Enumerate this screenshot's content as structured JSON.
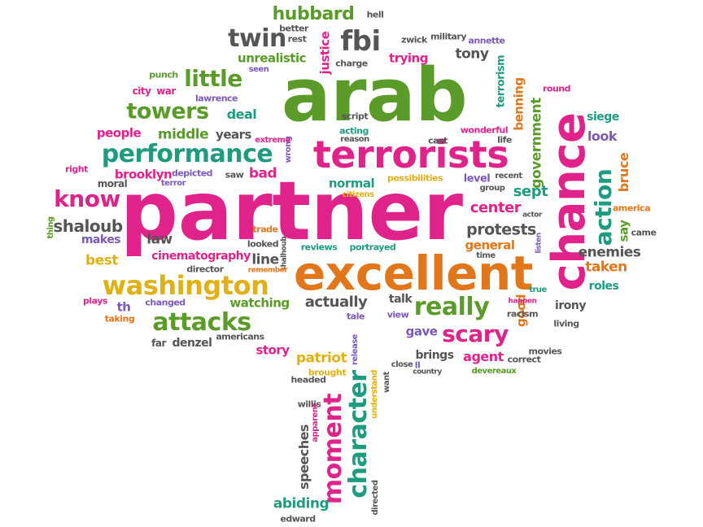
{
  "colors": {
    "green": "#5a9b2a",
    "pink": "#e0238a",
    "teal": "#1f9b80",
    "orange": "#e2761a",
    "gold": "#e0b114",
    "purple": "#7a5ab6",
    "gray": "#555555"
  },
  "words": [
    {
      "text": "partner",
      "color": "pink"
    },
    {
      "text": "arab",
      "color": "green"
    },
    {
      "text": "excellent",
      "color": "orange"
    },
    {
      "text": "chance",
      "color": "pink"
    },
    {
      "text": "terrorists",
      "color": "pink"
    },
    {
      "text": "performance",
      "color": "teal"
    },
    {
      "text": "washington",
      "color": "gold"
    },
    {
      "text": "attacks",
      "color": "green"
    },
    {
      "text": "towers",
      "color": "green"
    },
    {
      "text": "little",
      "color": "green"
    },
    {
      "text": "twin",
      "color": "gray"
    },
    {
      "text": "fbi",
      "color": "gray"
    },
    {
      "text": "know",
      "color": "pink"
    },
    {
      "text": "really",
      "color": "green"
    },
    {
      "text": "scary",
      "color": "pink"
    },
    {
      "text": "action",
      "color": "teal"
    },
    {
      "text": "moment",
      "color": "pink"
    },
    {
      "text": "character",
      "color": "teal"
    },
    {
      "text": "hubbard",
      "color": "green"
    },
    {
      "text": "shaloub",
      "color": "gray"
    },
    {
      "text": "protests",
      "color": "gray"
    },
    {
      "text": "center",
      "color": "pink"
    },
    {
      "text": "sept",
      "color": "teal"
    },
    {
      "text": "government",
      "color": "green"
    },
    {
      "text": "bruce",
      "color": "orange"
    },
    {
      "text": "say",
      "color": "green"
    },
    {
      "text": "enemies",
      "color": "gray"
    },
    {
      "text": "taken",
      "color": "orange"
    },
    {
      "text": "look",
      "color": "purple"
    },
    {
      "text": "siege",
      "color": "teal"
    },
    {
      "text": "benning",
      "color": "orange"
    },
    {
      "text": "terrorism",
      "color": "teal"
    },
    {
      "text": "tony",
      "color": "gray"
    },
    {
      "text": "trying",
      "color": "pink"
    },
    {
      "text": "justice",
      "color": "pink"
    },
    {
      "text": "unrealistic",
      "color": "green"
    },
    {
      "text": "deal",
      "color": "teal"
    },
    {
      "text": "middle",
      "color": "green"
    },
    {
      "text": "years",
      "color": "gray"
    },
    {
      "text": "people",
      "color": "pink"
    },
    {
      "text": "brooklyn",
      "color": "pink"
    },
    {
      "text": "bad",
      "color": "pink"
    },
    {
      "text": "law",
      "color": "gray"
    },
    {
      "text": "best",
      "color": "gold"
    },
    {
      "text": "cinematography",
      "color": "pink"
    },
    {
      "text": "line",
      "color": "gray"
    },
    {
      "text": "actually",
      "color": "gray"
    },
    {
      "text": "watching",
      "color": "green"
    },
    {
      "text": "denzel",
      "color": "gray"
    },
    {
      "text": "story",
      "color": "pink"
    },
    {
      "text": "patriot",
      "color": "gold"
    },
    {
      "text": "abiding",
      "color": "teal"
    },
    {
      "text": "speeches",
      "color": "gray"
    },
    {
      "text": "gave",
      "color": "purple"
    },
    {
      "text": "agent",
      "color": "pink"
    },
    {
      "text": "brings",
      "color": "gray"
    },
    {
      "text": "good",
      "color": "orange"
    },
    {
      "text": "general",
      "color": "orange"
    },
    {
      "text": "roles",
      "color": "teal"
    },
    {
      "text": "irony",
      "color": "gray"
    },
    {
      "text": "talk",
      "color": "gray"
    },
    {
      "text": "th",
      "color": "purple"
    },
    {
      "text": "makes",
      "color": "purple"
    },
    {
      "text": "normal",
      "color": "teal"
    },
    {
      "text": "level",
      "color": "purple"
    },
    {
      "text": "military",
      "color": "gray"
    },
    {
      "text": "zwick",
      "color": "gray"
    },
    {
      "text": "annette",
      "color": "purple"
    },
    {
      "text": "hell",
      "color": "gray"
    },
    {
      "text": "better",
      "color": "gray"
    },
    {
      "text": "rest",
      "color": "gray"
    },
    {
      "text": "punch",
      "color": "green"
    },
    {
      "text": "city",
      "color": "pink"
    },
    {
      "text": "war",
      "color": "pink"
    },
    {
      "text": "lawrence",
      "color": "purple"
    },
    {
      "text": "seen",
      "color": "purple"
    },
    {
      "text": "charge",
      "color": "gray"
    },
    {
      "text": "round",
      "color": "pink"
    },
    {
      "text": "script",
      "color": "gray"
    },
    {
      "text": "acting",
      "color": "teal"
    },
    {
      "text": "reason",
      "color": "gray"
    },
    {
      "text": "cast",
      "color": "gray"
    },
    {
      "text": "life",
      "color": "gray"
    },
    {
      "text": "wonderful",
      "color": "pink"
    },
    {
      "text": "wrong",
      "color": "purple"
    },
    {
      "text": "extreme",
      "color": "pink"
    },
    {
      "text": "right",
      "color": "pink"
    },
    {
      "text": "moral",
      "color": "gray"
    },
    {
      "text": "depicted",
      "color": "purple"
    },
    {
      "text": "terror",
      "color": "purple"
    },
    {
      "text": "saw",
      "color": "gray"
    },
    {
      "text": "possibilities",
      "color": "gold"
    },
    {
      "text": "citizens",
      "color": "gold"
    },
    {
      "text": "recent",
      "color": "gray"
    },
    {
      "text": "group",
      "color": "gray"
    },
    {
      "text": "actor",
      "color": "gray"
    },
    {
      "text": "america",
      "color": "orange"
    },
    {
      "text": "came",
      "color": "gray"
    },
    {
      "text": "thing",
      "color": "green"
    },
    {
      "text": "trade",
      "color": "orange"
    },
    {
      "text": "looked",
      "color": "gray"
    },
    {
      "text": "shalhoub",
      "color": "gray"
    },
    {
      "text": "reviews",
      "color": "teal"
    },
    {
      "text": "portrayed",
      "color": "teal"
    },
    {
      "text": "time",
      "color": "gray"
    },
    {
      "text": "listen",
      "color": "purple"
    },
    {
      "text": "director",
      "color": "gray"
    },
    {
      "text": "remember",
      "color": "orange"
    },
    {
      "text": "plays",
      "color": "pink"
    },
    {
      "text": "changed",
      "color": "purple"
    },
    {
      "text": "taking",
      "color": "orange"
    },
    {
      "text": "far",
      "color": "gray"
    },
    {
      "text": "americans",
      "color": "gray"
    },
    {
      "text": "tale",
      "color": "purple"
    },
    {
      "text": "view",
      "color": "purple"
    },
    {
      "text": "true",
      "color": "teal"
    },
    {
      "text": "happen",
      "color": "pink"
    },
    {
      "text": "racism",
      "color": "gray"
    },
    {
      "text": "living",
      "color": "gray"
    },
    {
      "text": "correct",
      "color": "gray"
    },
    {
      "text": "movies",
      "color": "gray"
    },
    {
      "text": "devereaux",
      "color": "green"
    },
    {
      "text": "close",
      "color": "gray"
    },
    {
      "text": "ll",
      "color": "purple"
    },
    {
      "text": "release",
      "color": "purple"
    },
    {
      "text": "brought",
      "color": "gold"
    },
    {
      "text": "headed",
      "color": "gray"
    },
    {
      "text": "understand",
      "color": "gold"
    },
    {
      "text": "want",
      "color": "gray"
    },
    {
      "text": "willis",
      "color": "gray"
    },
    {
      "text": "apparent",
      "color": "pink"
    },
    {
      "text": "directed",
      "color": "gray"
    },
    {
      "text": "country",
      "color": "gray"
    },
    {
      "text": "edward",
      "color": "gray"
    }
  ]
}
